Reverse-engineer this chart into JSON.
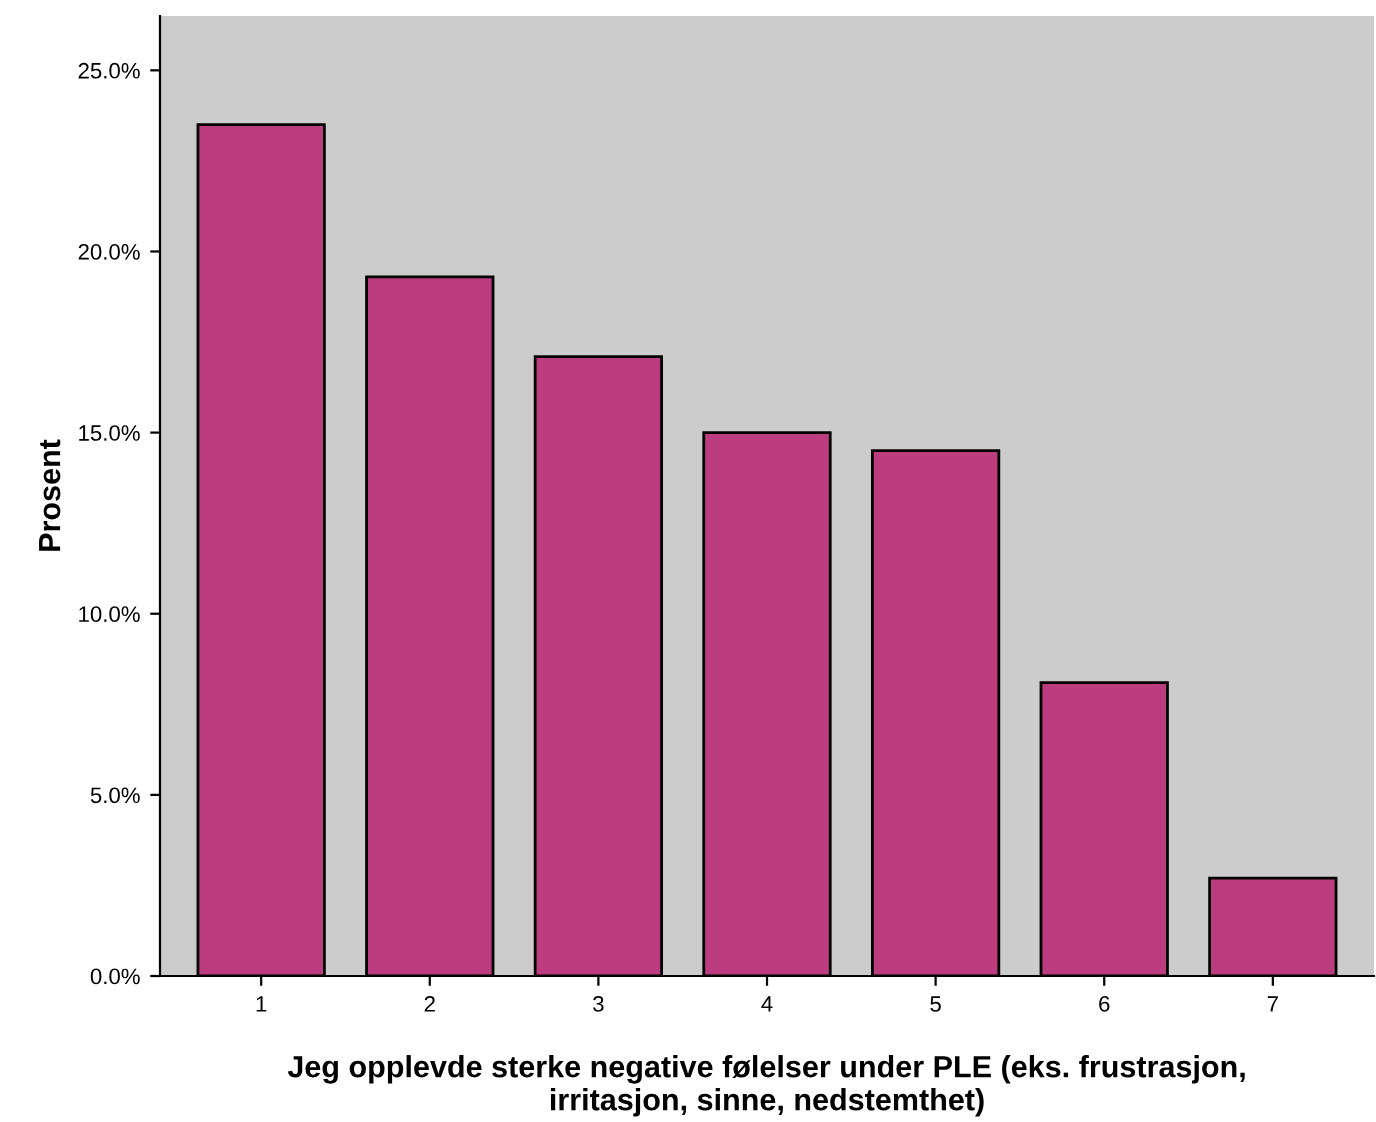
{
  "chart_data": {
    "type": "bar",
    "xlabel": "Jeg opplevde sterke negative følelser under PLE (eks. frustrasjon,\nirritasjon, sinne, nedstemthet)",
    "ylabel": "Prosent",
    "categories": [
      "1",
      "2",
      "3",
      "4",
      "5",
      "6",
      "7"
    ],
    "values": [
      23.5,
      19.3,
      17.1,
      15.0,
      14.5,
      8.1,
      2.7
    ],
    "color": "#bb3d7f",
    "ylim": [
      0,
      26.5
    ],
    "yticks": [
      {
        "value": 0,
        "label": "0.0%"
      },
      {
        "value": 5,
        "label": "5.0%"
      },
      {
        "value": 10,
        "label": "10.0%"
      },
      {
        "value": 15,
        "label": "15.0%"
      },
      {
        "value": 20,
        "label": "20.0%"
      },
      {
        "value": 25,
        "label": "25.0%"
      }
    ],
    "grid": false,
    "legend": false
  }
}
